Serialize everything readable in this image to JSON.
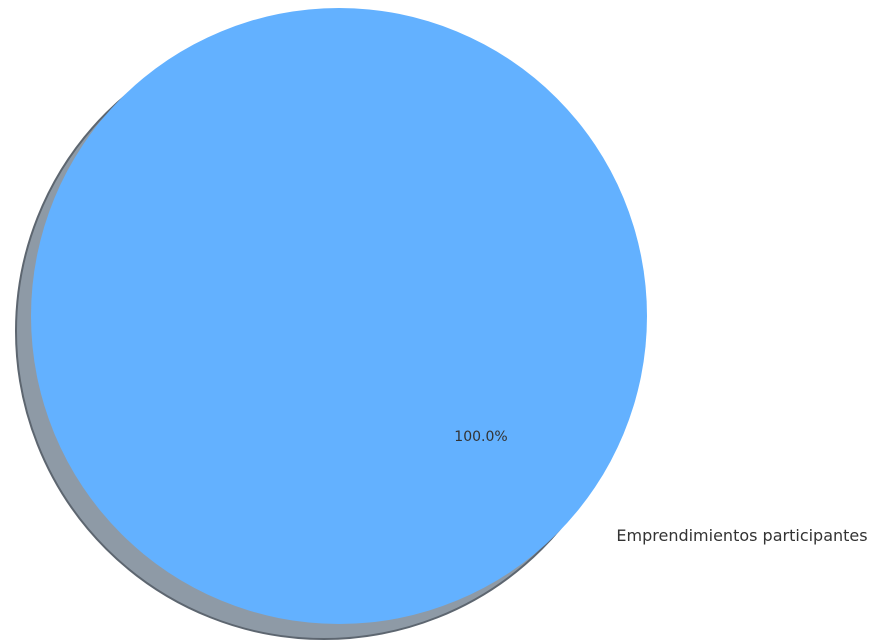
{
  "chart_data": {
    "type": "pie",
    "title": "",
    "shadow": true,
    "slices": [
      {
        "label": "Emprendimientos participantes",
        "value": 100.0,
        "percent_label": "100.0%",
        "color": "#63B1FF"
      }
    ],
    "shadow_color": "#8E9AA6",
    "shadow_edge_color": "#5D6670",
    "text_color": "#333333"
  }
}
